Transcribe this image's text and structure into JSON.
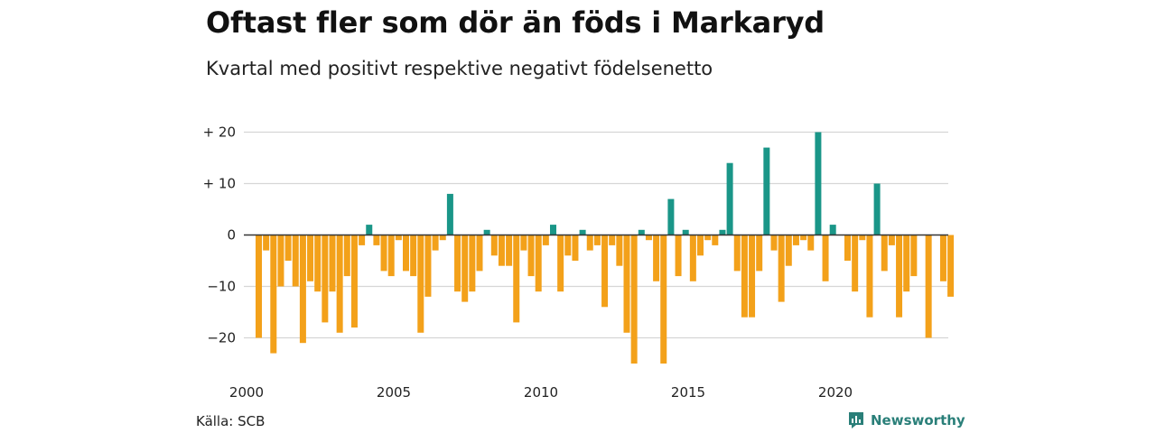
{
  "title": "Oftast fler som dör än föds i Markaryd",
  "subtitle": "Kvartal med positivt respektive negativt födelsenetto",
  "source": "Källa: SCB",
  "brand": "Newsworthy",
  "colors": {
    "positive": "#1a9688",
    "negative": "#f3a11a",
    "grid": "#d6d6d6",
    "zero": "#333333",
    "brand": "#2a7f79"
  },
  "chart_data": {
    "type": "bar",
    "title": "Oftast fler som dör än föds i Markaryd",
    "subtitle": "Kvartal med positivt respektive negativt födelsenetto",
    "xlabel": "",
    "ylabel": "",
    "ylim": [
      -27,
      22
    ],
    "yticks": [
      20,
      10,
      0,
      -10,
      -20
    ],
    "ytick_labels": [
      "+ 20",
      "+ 10",
      "0",
      "−10",
      "−20"
    ],
    "xticks": [
      2000,
      2005,
      2010,
      2015,
      2020
    ],
    "xtick_labels": [
      "2000",
      "2005",
      "2010",
      "2015",
      "2020"
    ],
    "x_start": 2000,
    "quarters_per_year": 4,
    "grid": true,
    "values": [
      -20,
      -3,
      -23,
      -10,
      -5,
      -10,
      -21,
      -9,
      -11,
      -17,
      -11,
      -19,
      -8,
      -18,
      -2,
      2,
      -2,
      -7,
      -8,
      -1,
      -7,
      -8,
      -19,
      -12,
      -3,
      -1,
      8,
      -11,
      -13,
      -11,
      -7,
      1,
      -4,
      -6,
      -6,
      -17,
      -3,
      -8,
      -11,
      -2,
      2,
      -11,
      -4,
      -5,
      1,
      -3,
      -2,
      -14,
      -2,
      -6,
      -19,
      -25,
      1,
      -1,
      -9,
      -25,
      7,
      -8,
      1,
      -9,
      -4,
      -1,
      -2,
      1,
      14,
      -7,
      -16,
      -16,
      -7,
      17,
      -3,
      -13,
      -6,
      -2,
      -1,
      -3,
      20,
      -9,
      2,
      0,
      -5,
      -11,
      -1,
      -16,
      10,
      -7,
      -2,
      -16,
      -11,
      -8,
      0,
      -20,
      0,
      -9,
      -12
    ]
  }
}
